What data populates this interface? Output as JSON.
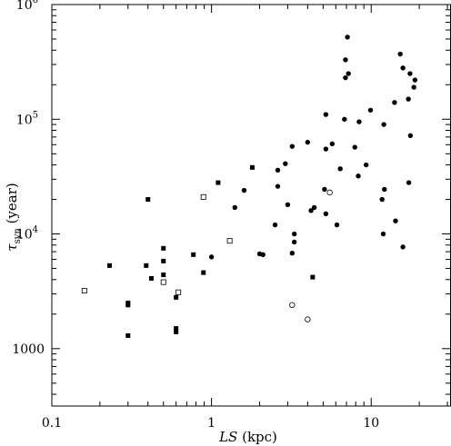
{
  "chart_data": {
    "type": "scatter",
    "xlabel": {
      "italic": "LS",
      "rest": " (kpc)"
    },
    "ylabel": {
      "symbol": "τ",
      "sub": "syn",
      "rest": " (year)"
    },
    "xscale": "log",
    "yscale": "log",
    "xlim": [
      0.1,
      31.6
    ],
    "ylim": [
      316,
      1000000
    ],
    "grid": false,
    "legend": "none",
    "x_ticks": [
      {
        "value": 0.1,
        "label": "0.1"
      },
      {
        "value": 1,
        "label": "1"
      },
      {
        "value": 10,
        "label": "10"
      }
    ],
    "y_ticks": [
      {
        "value": 1000,
        "label": "1000",
        "kind": "plain"
      },
      {
        "value": 10000,
        "label": "10",
        "exp": "4",
        "kind": "power"
      },
      {
        "value": 100000,
        "label": "10",
        "exp": "5",
        "kind": "power"
      },
      {
        "value": 1000000,
        "label": "10",
        "exp": "6",
        "kind": "power"
      }
    ],
    "series": [
      {
        "marker": "filled-circle",
        "points": [
          [
            7.1,
            520000
          ],
          [
            6.9,
            330000
          ],
          [
            6.9,
            230000
          ],
          [
            7.2,
            250000
          ],
          [
            15.2,
            370000
          ],
          [
            15.8,
            280000
          ],
          [
            17.5,
            250000
          ],
          [
            18.8,
            220000
          ],
          [
            18.5,
            190000
          ],
          [
            14.0,
            140000
          ],
          [
            17.1,
            150000
          ],
          [
            9.9,
            120000
          ],
          [
            5.2,
            110000
          ],
          [
            6.8,
            100000
          ],
          [
            8.4,
            95000
          ],
          [
            12.0,
            90000
          ],
          [
            17.6,
            72000
          ],
          [
            4.0,
            63000
          ],
          [
            5.7,
            61000
          ],
          [
            7.9,
            57000
          ],
          [
            3.2,
            58000
          ],
          [
            5.2,
            55000
          ],
          [
            9.3,
            40000
          ],
          [
            2.9,
            41000
          ],
          [
            6.4,
            37000
          ],
          [
            2.6,
            36000
          ],
          [
            8.3,
            32000
          ],
          [
            17.2,
            28000
          ],
          [
            2.6,
            26000
          ],
          [
            1.6,
            24000
          ],
          [
            5.1,
            24500
          ],
          [
            12.1,
            24500
          ],
          [
            11.7,
            20000
          ],
          [
            3.0,
            18000
          ],
          [
            4.4,
            17000
          ],
          [
            1.4,
            17000
          ],
          [
            4.2,
            16000
          ],
          [
            5.2,
            15000
          ],
          [
            14.2,
            13000
          ],
          [
            2.5,
            12000
          ],
          [
            6.1,
            12000
          ],
          [
            3.3,
            10000
          ],
          [
            11.9,
            10000
          ],
          [
            3.3,
            8500
          ],
          [
            15.8,
            7700
          ],
          [
            2.0,
            6700
          ],
          [
            2.1,
            6600
          ],
          [
            3.2,
            6800
          ],
          [
            1.0,
            6300
          ]
        ]
      },
      {
        "marker": "filled-square",
        "points": [
          [
            1.8,
            38000
          ],
          [
            1.1,
            28000
          ],
          [
            0.4,
            20000
          ],
          [
            0.5,
            7500
          ],
          [
            0.5,
            5800
          ],
          [
            0.77,
            6600
          ],
          [
            0.23,
            5300
          ],
          [
            0.39,
            5300
          ],
          [
            0.5,
            4400
          ],
          [
            0.42,
            4100
          ],
          [
            0.89,
            4600
          ],
          [
            4.3,
            4200
          ],
          [
            0.6,
            2800
          ],
          [
            0.3,
            2500
          ],
          [
            0.3,
            2400
          ],
          [
            0.6,
            1500
          ],
          [
            0.6,
            1400
          ],
          [
            0.3,
            1300
          ]
        ]
      },
      {
        "marker": "open-square",
        "points": [
          [
            0.89,
            21000
          ],
          [
            1.3,
            8700
          ],
          [
            0.5,
            3800
          ],
          [
            0.62,
            3100
          ],
          [
            0.16,
            3200
          ]
        ]
      },
      {
        "marker": "open-circle",
        "points": [
          [
            5.5,
            23000
          ],
          [
            3.2,
            2400
          ],
          [
            4.0,
            1800
          ]
        ]
      }
    ]
  }
}
